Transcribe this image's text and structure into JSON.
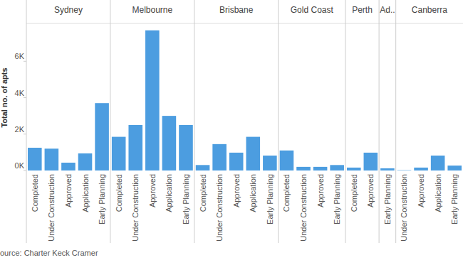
{
  "chart_data": {
    "type": "bar",
    "y_label": "Total no. of apts",
    "source": "ource: Charter Keck Cramer",
    "color": "#4c9de0",
    "grid": false,
    "ylim": [
      0,
      8000
    ],
    "yticks": [
      {
        "value": 0,
        "label": "0K"
      },
      {
        "value": 2000,
        "label": "2K"
      },
      {
        "value": 4000,
        "label": "4K"
      },
      {
        "value": 6000,
        "label": "6K"
      }
    ],
    "groups": [
      {
        "name": "Sydney",
        "categories": [
          "Completed",
          "Under Construction",
          "Approved",
          "Application",
          "Early Planning"
        ],
        "values": [
          1250,
          1200,
          430,
          940,
          3700
        ]
      },
      {
        "name": "Melbourne",
        "categories": [
          "Completed",
          "Under Construction",
          "Approved",
          "Application",
          "Early Planning"
        ],
        "values": [
          1850,
          2500,
          7700,
          3000,
          2500
        ]
      },
      {
        "name": "Brisbane",
        "categories": [
          "Completed",
          "Under Construction",
          "Approved",
          "Application",
          "Early Planning"
        ],
        "values": [
          300,
          1450,
          980,
          1850,
          820
        ]
      },
      {
        "name": "Gold Coast",
        "categories": [
          "Completed",
          "Under Construction",
          "Approved",
          "Early Planning"
        ],
        "values": [
          1100,
          200,
          200,
          300
        ]
      },
      {
        "name": "Perth",
        "categories": [
          "Completed",
          "Approved"
        ],
        "values": [
          160,
          980
        ]
      },
      {
        "name": "Ad..",
        "categories": [
          "Early Planning"
        ],
        "values": [
          120
        ]
      },
      {
        "name": "Canberra",
        "categories": [
          "Under Construction",
          "Approved",
          "Application",
          "Early Planning"
        ],
        "values": [
          20,
          160,
          820,
          270
        ]
      }
    ]
  }
}
